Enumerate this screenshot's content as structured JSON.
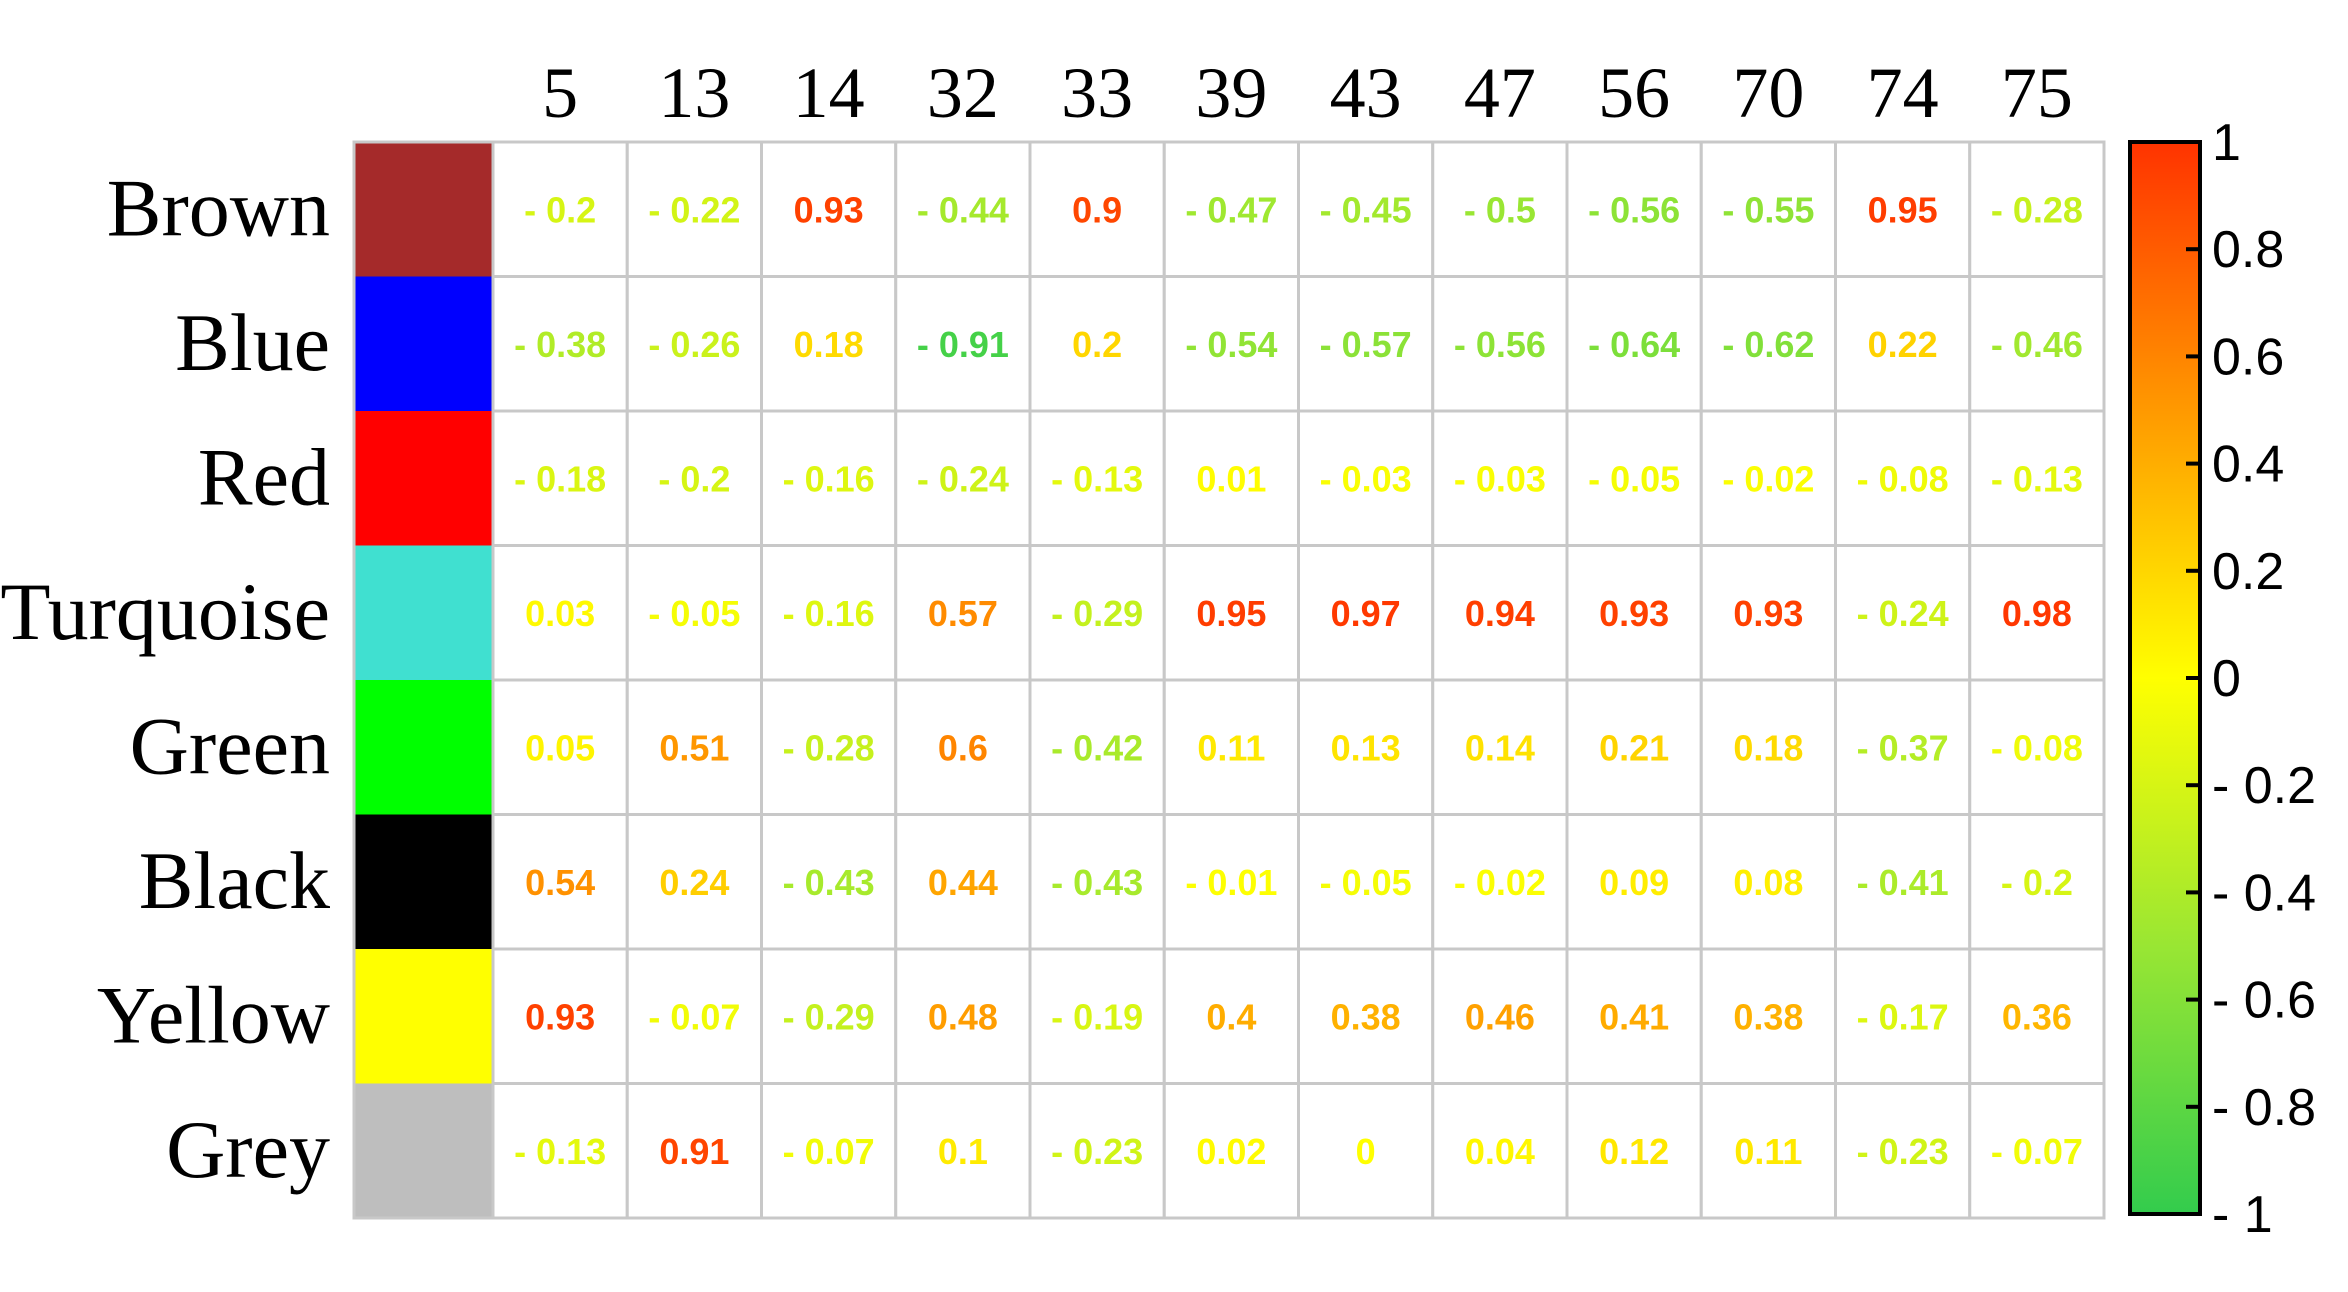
{
  "chart_data": {
    "type": "heatmap",
    "title": "",
    "xlabel": "",
    "ylabel": "",
    "rows": [
      "Brown",
      "Blue",
      "Red",
      "Turquoise",
      "Green",
      "Black",
      "Yellow",
      "Grey"
    ],
    "row_colors": [
      "#A52A2A",
      "#0000FF",
      "#FF0000",
      "#40E0D0",
      "#00FF00",
      "#000000",
      "#FFFF00",
      "#BEBEBE"
    ],
    "columns": [
      "5",
      "13",
      "14",
      "32",
      "33",
      "39",
      "43",
      "47",
      "56",
      "70",
      "74",
      "75"
    ],
    "values": [
      [
        -0.2,
        -0.22,
        0.93,
        -0.44,
        0.9,
        -0.47,
        -0.45,
        -0.5,
        -0.56,
        -0.55,
        0.95,
        -0.28
      ],
      [
        -0.38,
        -0.26,
        0.18,
        -0.91,
        0.2,
        -0.54,
        -0.57,
        -0.56,
        -0.64,
        -0.62,
        0.22,
        -0.46
      ],
      [
        -0.18,
        -0.2,
        -0.16,
        -0.24,
        -0.13,
        0.01,
        -0.03,
        -0.03,
        -0.05,
        -0.02,
        -0.08,
        -0.13
      ],
      [
        0.03,
        -0.05,
        -0.16,
        0.57,
        -0.29,
        0.95,
        0.97,
        0.94,
        0.93,
        0.93,
        -0.24,
        0.98
      ],
      [
        0.05,
        0.51,
        -0.28,
        0.6,
        -0.42,
        0.11,
        0.13,
        0.14,
        0.21,
        0.18,
        -0.37,
        -0.08
      ],
      [
        0.54,
        0.24,
        -0.43,
        0.44,
        -0.43,
        -0.01,
        -0.05,
        -0.02,
        0.09,
        0.08,
        -0.41,
        -0.2
      ],
      [
        0.93,
        -0.07,
        -0.29,
        0.48,
        -0.19,
        0.4,
        0.38,
        0.46,
        0.41,
        0.38,
        -0.17,
        0.36
      ],
      [
        -0.13,
        0.91,
        -0.07,
        0.1,
        -0.23,
        0.02,
        0,
        0.04,
        0.12,
        0.11,
        -0.23,
        -0.07
      ]
    ],
    "labels": [
      [
        "- 0.2",
        "- 0.22",
        "0.93",
        "- 0.44",
        "0.9",
        "- 0.47",
        "- 0.45",
        "- 0.5",
        "- 0.56",
        "- 0.55",
        "0.95",
        "- 0.28"
      ],
      [
        "- 0.38",
        "- 0.26",
        "0.18",
        "- 0.91",
        "0.2",
        "- 0.54",
        "- 0.57",
        "- 0.56",
        "- 0.64",
        "- 0.62",
        "0.22",
        "- 0.46"
      ],
      [
        "- 0.18",
        "- 0.2",
        "- 0.16",
        "- 0.24",
        "- 0.13",
        "0.01",
        "- 0.03",
        "- 0.03",
        "- 0.05",
        "- 0.02",
        "- 0.08",
        "- 0.13"
      ],
      [
        "0.03",
        "- 0.05",
        "- 0.16",
        "0.57",
        "- 0.29",
        "0.95",
        "0.97",
        "0.94",
        "0.93",
        "0.93",
        "- 0.24",
        "0.98"
      ],
      [
        "0.05",
        "0.51",
        "- 0.28",
        "0.6",
        "- 0.42",
        "0.11",
        "0.13",
        "0.14",
        "0.21",
        "0.18",
        "- 0.37",
        "- 0.08"
      ],
      [
        "0.54",
        "0.24",
        "- 0.43",
        "0.44",
        "- 0.43",
        "- 0.01",
        "- 0.05",
        "- 0.02",
        "0.09",
        "0.08",
        "- 0.41",
        "- 0.2"
      ],
      [
        "0.93",
        "- 0.07",
        "- 0.29",
        "0.48",
        "- 0.19",
        "0.4",
        "0.38",
        "0.46",
        "0.41",
        "0.38",
        "- 0.17",
        "0.36"
      ],
      [
        "- 0.13",
        "0.91",
        "- 0.07",
        "0.1",
        "- 0.23",
        "0.02",
        "0",
        "0.04",
        "0.12",
        "0.11",
        "- 0.23",
        "- 0.07"
      ]
    ],
    "colorbar": {
      "range": [
        -1,
        1
      ],
      "ticks": [
        1,
        0.8,
        0.6,
        0.4,
        0.2,
        0,
        -0.2,
        -0.4,
        -0.6,
        -0.8,
        -1
      ],
      "tick_labels": [
        "1",
        "0.8",
        "0.6",
        "0.4",
        "0.2",
        "0",
        "- 0.2",
        "- 0.4",
        "- 0.6",
        "- 0.8",
        "- 1"
      ],
      "color_stops": [
        {
          "value": -1,
          "color": "#33CC4D"
        },
        {
          "value": -0.5,
          "color": "#99E633"
        },
        {
          "value": 0,
          "color": "#FFFF00"
        },
        {
          "value": 0.5,
          "color": "#FF9900"
        },
        {
          "value": 1,
          "color": "#FF3300"
        }
      ]
    },
    "grid": true,
    "legend": "right"
  }
}
